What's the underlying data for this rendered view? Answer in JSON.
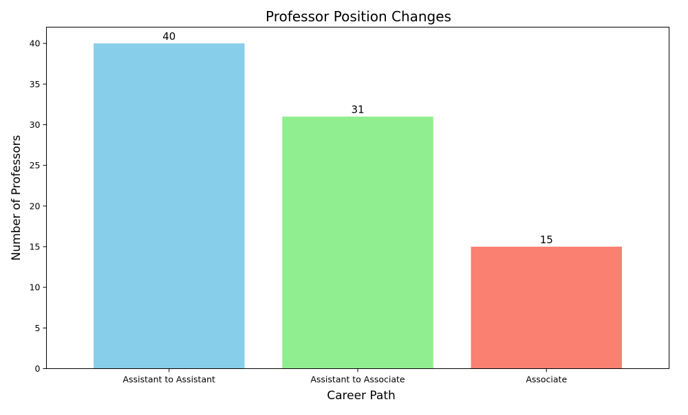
{
  "chart_data": {
    "type": "bar",
    "title": "Professor Position Changes",
    "xlabel": "Career Path",
    "ylabel": "Number of Professors",
    "categories": [
      "Assistant to Assistant",
      "Assistant to Associate",
      "Associate"
    ],
    "values": [
      40,
      31,
      15
    ],
    "colors": [
      "#87ceeb",
      "#90ee90",
      "#fa8072"
    ],
    "ylim": [
      0,
      42
    ],
    "yticks": [
      0,
      5,
      10,
      15,
      20,
      25,
      30,
      35,
      40
    ],
    "grid": false,
    "legend": "none",
    "data_labels": true
  }
}
